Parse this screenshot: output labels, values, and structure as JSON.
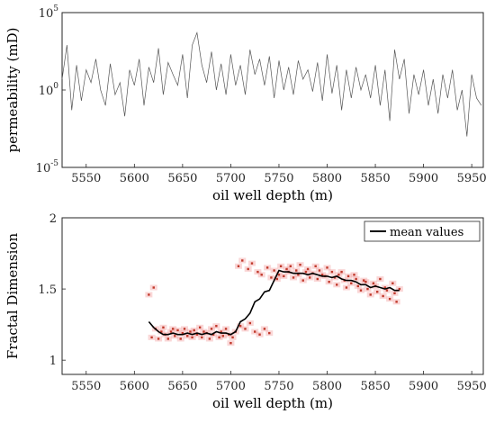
{
  "colors": {
    "line_gray": "#555555",
    "mean_line": "#000000",
    "scatter_red": "#c0392b",
    "scatter_pink": "#f4a6a6",
    "axis": "#262626"
  },
  "chart_data": [
    {
      "type": "line",
      "xlabel": "oil well depth (m)",
      "ylabel": "permeability (mD)",
      "xlim": [
        5525,
        5962
      ],
      "yscale": "log",
      "ylim": [
        1e-05,
        100000.0
      ],
      "x_ticks": [
        "5550",
        "5600",
        "5650",
        "5700",
        "5750",
        "5800",
        "5850",
        "5900",
        "5950"
      ],
      "y_ticks": [
        {
          "base": "10",
          "exp": "-5"
        },
        {
          "base": "10",
          "exp": "0"
        },
        {
          "base": "10",
          "exp": "5"
        }
      ],
      "series": [
        {
          "x": [
            5525,
            5530,
            5535,
            5540,
            5545,
            5550,
            5555,
            5560,
            5565,
            5570,
            5575,
            5580,
            5585,
            5590,
            5595,
            5600,
            5605,
            5610,
            5615,
            5620,
            5625,
            5630,
            5635,
            5640,
            5645,
            5650,
            5655,
            5660,
            5665,
            5670,
            5675,
            5680,
            5685,
            5690,
            5695,
            5700,
            5705,
            5710,
            5715,
            5720,
            5725,
            5730,
            5735,
            5740,
            5745,
            5750,
            5755,
            5760,
            5765,
            5770,
            5775,
            5780,
            5785,
            5790,
            5795,
            5800,
            5805,
            5810,
            5815,
            5820,
            5825,
            5830,
            5835,
            5840,
            5845,
            5850,
            5855,
            5860,
            5865,
            5870,
            5875,
            5880,
            5885,
            5890,
            5895,
            5900,
            5905,
            5910,
            5915,
            5920,
            5925,
            5930,
            5935,
            5940,
            5945,
            5950,
            5955,
            5960
          ],
          "y": [
            5,
            800,
            0.05,
            40,
            0.2,
            20,
            3,
            100,
            1,
            0.1,
            50,
            0.5,
            3,
            0.02,
            20,
            2,
            100,
            0.1,
            30,
            3,
            500,
            0.5,
            60,
            10,
            2,
            200,
            0.3,
            800,
            5000,
            40,
            3,
            300,
            1,
            50,
            0.5,
            200,
            2,
            40,
            0.5,
            400,
            10,
            100,
            2,
            150,
            0.3,
            80,
            1,
            30,
            0.5,
            80,
            5,
            20,
            0.8,
            60,
            0.2,
            200,
            0.6,
            40,
            0.05,
            20,
            0.3,
            30,
            1,
            10,
            0.3,
            40,
            0.1,
            20,
            0.01,
            400,
            5,
            100,
            0.03,
            10,
            0.5,
            20,
            0.1,
            5,
            0.03,
            10,
            0.3,
            20,
            0.05,
            1,
            0.001,
            10,
            0.3,
            0.1
          ]
        }
      ]
    },
    {
      "type": "scatter",
      "xlabel": "oil well depth (m)",
      "ylabel": "Fractal Dimension",
      "xlim": [
        5525,
        5962
      ],
      "ylim": [
        0.9,
        2.0
      ],
      "x_ticks": [
        "5550",
        "5600",
        "5650",
        "5700",
        "5750",
        "5800",
        "5850",
        "5900",
        "5950"
      ],
      "y_ticks": [
        "1",
        "1.5",
        "2"
      ],
      "legend": "top-right",
      "series": [
        {
          "name": "mean values",
          "x": [
            5615,
            5620,
            5625,
            5630,
            5635,
            5640,
            5645,
            5650,
            5655,
            5660,
            5665,
            5670,
            5675,
            5680,
            5685,
            5690,
            5695,
            5700,
            5705,
            5710,
            5715,
            5720,
            5725,
            5730,
            5735,
            5740,
            5745,
            5750,
            5755,
            5760,
            5765,
            5770,
            5775,
            5780,
            5785,
            5790,
            5795,
            5800,
            5805,
            5810,
            5815,
            5820,
            5825,
            5830,
            5835,
            5840,
            5845,
            5850,
            5855,
            5860,
            5865,
            5870,
            5875
          ],
          "y": [
            1.27,
            1.23,
            1.2,
            1.18,
            1.18,
            1.19,
            1.18,
            1.18,
            1.19,
            1.18,
            1.19,
            1.18,
            1.19,
            1.18,
            1.2,
            1.19,
            1.19,
            1.18,
            1.2,
            1.27,
            1.29,
            1.33,
            1.41,
            1.43,
            1.48,
            1.49,
            1.56,
            1.63,
            1.62,
            1.62,
            1.61,
            1.61,
            1.61,
            1.6,
            1.61,
            1.6,
            1.59,
            1.59,
            1.58,
            1.59,
            1.57,
            1.56,
            1.56,
            1.55,
            1.53,
            1.53,
            1.51,
            1.52,
            1.51,
            1.5,
            1.51,
            1.49,
            1.49
          ]
        },
        {
          "x": [
            5615,
            5618,
            5620,
            5622,
            5625,
            5628,
            5630,
            5632,
            5635,
            5638,
            5640,
            5642,
            5645,
            5648,
            5650,
            5652,
            5655,
            5658,
            5660,
            5662,
            5665,
            5668,
            5670,
            5672,
            5675,
            5678,
            5680,
            5682,
            5685,
            5688,
            5690,
            5692,
            5695,
            5698,
            5700,
            5702,
            5705,
            5708,
            5710,
            5712,
            5715,
            5718,
            5720,
            5722,
            5725,
            5728,
            5730,
            5732,
            5735,
            5738,
            5740,
            5742,
            5745,
            5748,
            5750,
            5752,
            5755,
            5758,
            5760,
            5762,
            5765,
            5768,
            5770,
            5772,
            5775,
            5778,
            5780,
            5782,
            5785,
            5788,
            5790,
            5792,
            5795,
            5798,
            5800,
            5802,
            5805,
            5808,
            5810,
            5812,
            5815,
            5818,
            5820,
            5822,
            5825,
            5828,
            5830,
            5832,
            5835,
            5838,
            5840,
            5842,
            5845,
            5848,
            5850,
            5852,
            5855,
            5858,
            5860,
            5862,
            5865,
            5868,
            5870,
            5872,
            5875
          ],
          "y": [
            1.46,
            1.16,
            1.51,
            1.22,
            1.15,
            1.2,
            1.23,
            1.18,
            1.15,
            1.2,
            1.22,
            1.17,
            1.21,
            1.15,
            1.19,
            1.22,
            1.17,
            1.2,
            1.16,
            1.21,
            1.18,
            1.23,
            1.16,
            1.2,
            1.19,
            1.15,
            1.22,
            1.18,
            1.24,
            1.16,
            1.2,
            1.17,
            1.22,
            1.18,
            1.12,
            1.16,
            1.2,
            1.66,
            1.24,
            1.7,
            1.22,
            1.64,
            1.26,
            1.68,
            1.2,
            1.62,
            1.18,
            1.6,
            1.22,
            1.65,
            1.19,
            1.58,
            1.63,
            1.57,
            1.6,
            1.66,
            1.59,
            1.64,
            1.62,
            1.66,
            1.58,
            1.63,
            1.6,
            1.67,
            1.56,
            1.62,
            1.64,
            1.58,
            1.61,
            1.66,
            1.57,
            1.63,
            1.6,
            1.59,
            1.65,
            1.55,
            1.62,
            1.58,
            1.53,
            1.6,
            1.62,
            1.56,
            1.51,
            1.59,
            1.54,
            1.6,
            1.57,
            1.52,
            1.49,
            1.56,
            1.55,
            1.5,
            1.46,
            1.54,
            1.52,
            1.48,
            1.57,
            1.45,
            1.51,
            1.49,
            1.43,
            1.54,
            1.47,
            1.41,
            1.5
          ]
        }
      ]
    }
  ]
}
